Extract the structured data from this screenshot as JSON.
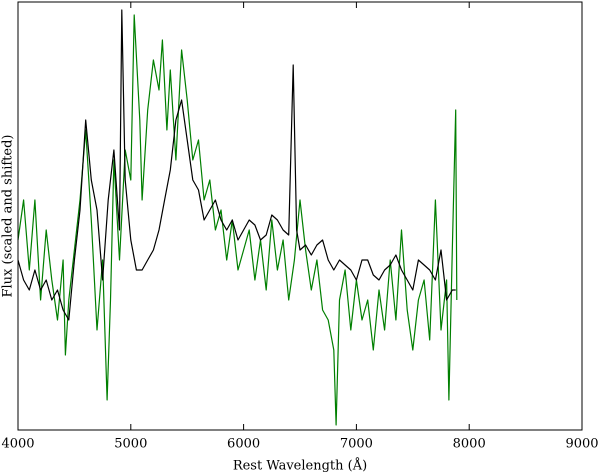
{
  "chart_data": {
    "type": "line",
    "xlabel": "Rest Wavelength (Å)",
    "ylabel": "Flux (scaled and shifted)",
    "xlim": [
      4000,
      9000
    ],
    "xticks": [
      4000,
      5000,
      6000,
      7000,
      8000,
      9000
    ],
    "ylim": [
      0,
      428
    ],
    "series": [
      {
        "color": "#007f00",
        "x": [
          4000,
          4050,
          4100,
          4150,
          4200,
          4250,
          4300,
          4350,
          4400,
          4420,
          4450,
          4500,
          4550,
          4600,
          4650,
          4700,
          4750,
          4790,
          4820,
          4850,
          4900,
          4950,
          5000,
          5030,
          5080,
          5100,
          5150,
          5200,
          5250,
          5280,
          5320,
          5350,
          5400,
          5450,
          5500,
          5550,
          5600,
          5650,
          5700,
          5750,
          5800,
          5850,
          5900,
          5950,
          6000,
          6050,
          6100,
          6150,
          6200,
          6250,
          6300,
          6350,
          6400,
          6450,
          6500,
          6550,
          6600,
          6650,
          6700,
          6750,
          6800,
          6820,
          6850,
          6900,
          6950,
          7000,
          7050,
          7100,
          7150,
          7200,
          7250,
          7300,
          7350,
          7400,
          7450,
          7500,
          7550,
          7600,
          7650,
          7700,
          7750,
          7800,
          7820,
          7850,
          7880,
          7890
        ],
        "values": [
          190,
          230,
          160,
          230,
          130,
          200,
          150,
          110,
          170,
          75,
          130,
          180,
          230,
          300,
          210,
          100,
          170,
          30,
          130,
          270,
          170,
          280,
          250,
          415,
          310,
          230,
          320,
          370,
          340,
          390,
          300,
          360,
          270,
          380,
          330,
          270,
          290,
          230,
          250,
          200,
          220,
          170,
          210,
          160,
          180,
          200,
          150,
          190,
          140,
          210,
          160,
          190,
          130,
          170,
          230,
          180,
          140,
          170,
          120,
          110,
          80,
          5,
          130,
          160,
          100,
          150,
          110,
          130,
          80,
          140,
          100,
          170,
          110,
          200,
          120,
          80,
          130,
          150,
          90,
          230,
          100,
          150,
          30,
          180,
          320,
          130
        ]
      },
      {
        "color": "#000000",
        "x": [
          4000,
          4050,
          4100,
          4150,
          4200,
          4250,
          4300,
          4350,
          4400,
          4450,
          4500,
          4550,
          4600,
          4650,
          4700,
          4750,
          4800,
          4850,
          4900,
          4920,
          4950,
          5000,
          5050,
          5100,
          5150,
          5200,
          5250,
          5300,
          5350,
          5400,
          5450,
          5500,
          5550,
          5600,
          5650,
          5700,
          5750,
          5800,
          5850,
          5900,
          5950,
          6000,
          6050,
          6100,
          6150,
          6200,
          6250,
          6300,
          6350,
          6400,
          6440,
          6470,
          6500,
          6550,
          6600,
          6650,
          6700,
          6750,
          6800,
          6850,
          6900,
          6950,
          7000,
          7050,
          7100,
          7150,
          7200,
          7250,
          7300,
          7350,
          7400,
          7450,
          7500,
          7550,
          7600,
          7650,
          7700,
          7750,
          7800,
          7850,
          7880
        ],
        "values": [
          170,
          150,
          140,
          160,
          140,
          150,
          130,
          140,
          120,
          110,
          170,
          220,
          310,
          250,
          220,
          150,
          230,
          280,
          200,
          420,
          250,
          190,
          160,
          160,
          170,
          180,
          200,
          230,
          260,
          310,
          330,
          290,
          250,
          240,
          210,
          220,
          230,
          210,
          200,
          210,
          190,
          200,
          210,
          205,
          190,
          195,
          215,
          210,
          200,
          195,
          365,
          200,
          180,
          185,
          175,
          185,
          190,
          170,
          160,
          170,
          165,
          160,
          150,
          170,
          170,
          155,
          150,
          160,
          165,
          175,
          160,
          150,
          140,
          170,
          165,
          160,
          150,
          180,
          130,
          140,
          140
        ]
      }
    ]
  }
}
